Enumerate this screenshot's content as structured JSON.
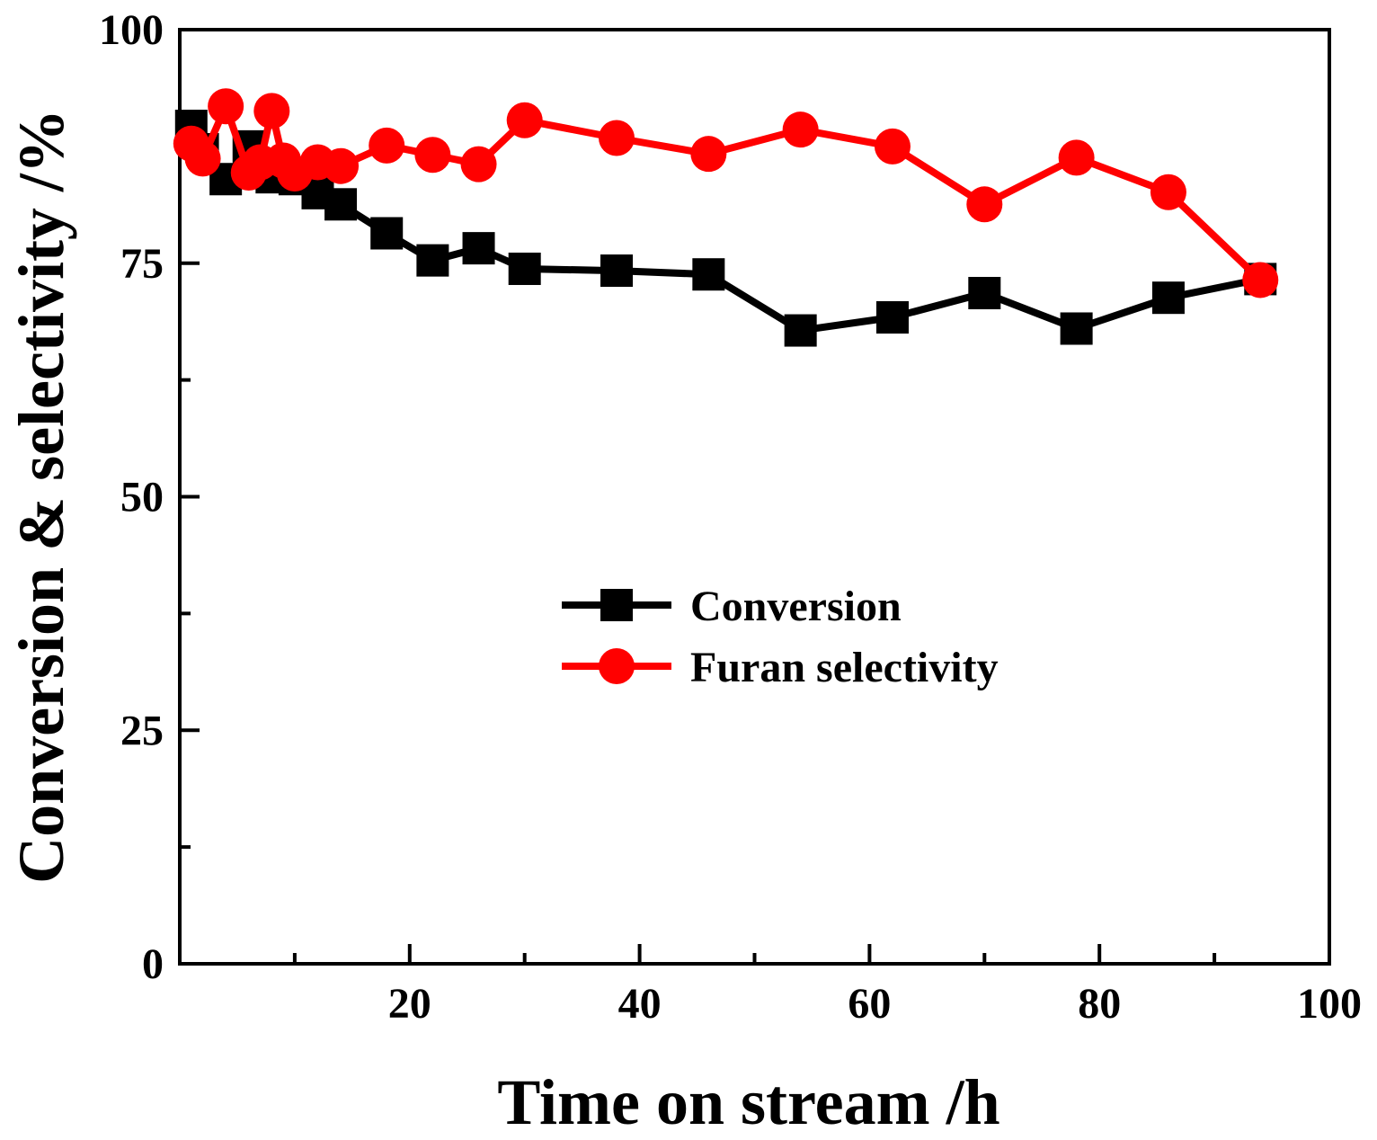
{
  "chart_data": {
    "type": "line",
    "title": "",
    "xlabel": "Time on stream /h",
    "ylabel": "Conversion & selectivity /%",
    "xlim": [
      0,
      100
    ],
    "ylim": [
      0,
      100
    ],
    "xticks": [
      20,
      40,
      60,
      80,
      100
    ],
    "xtick_labels": [
      "20",
      "40",
      "60",
      "80",
      "100"
    ],
    "yticks": [
      0,
      25,
      50,
      75,
      100
    ],
    "ytick_labels": [
      "0",
      "25",
      "50",
      "75",
      "100"
    ],
    "grid": false,
    "legend_position": "center-right",
    "series": [
      {
        "name": "Conversion",
        "color": "#000000",
        "marker": "square",
        "x": [
          1,
          2,
          4,
          6,
          8,
          10,
          12,
          14,
          18,
          22,
          26,
          30,
          38,
          46,
          54,
          62,
          70,
          78,
          86,
          94
        ],
        "y": [
          89.7,
          87.2,
          84.0,
          87.5,
          84.2,
          84.0,
          82.5,
          81.3,
          78.2,
          75.3,
          76.6,
          74.4,
          74.2,
          73.8,
          67.8,
          69.2,
          71.8,
          68.0,
          71.3,
          73.3
        ]
      },
      {
        "name": "Furan selectivity",
        "color": "#ff0000",
        "marker": "circle",
        "x": [
          1,
          2,
          4,
          6,
          7,
          8,
          9,
          10,
          12,
          14,
          18,
          22,
          26,
          30,
          38,
          46,
          54,
          62,
          70,
          78,
          86,
          94
        ],
        "y": [
          87.8,
          86.2,
          91.8,
          84.7,
          85.8,
          91.3,
          86.0,
          84.6,
          85.8,
          85.4,
          87.6,
          86.6,
          85.6,
          90.3,
          88.4,
          86.7,
          89.3,
          87.5,
          81.3,
          86.3,
          82.6,
          73.2
        ]
      }
    ]
  }
}
